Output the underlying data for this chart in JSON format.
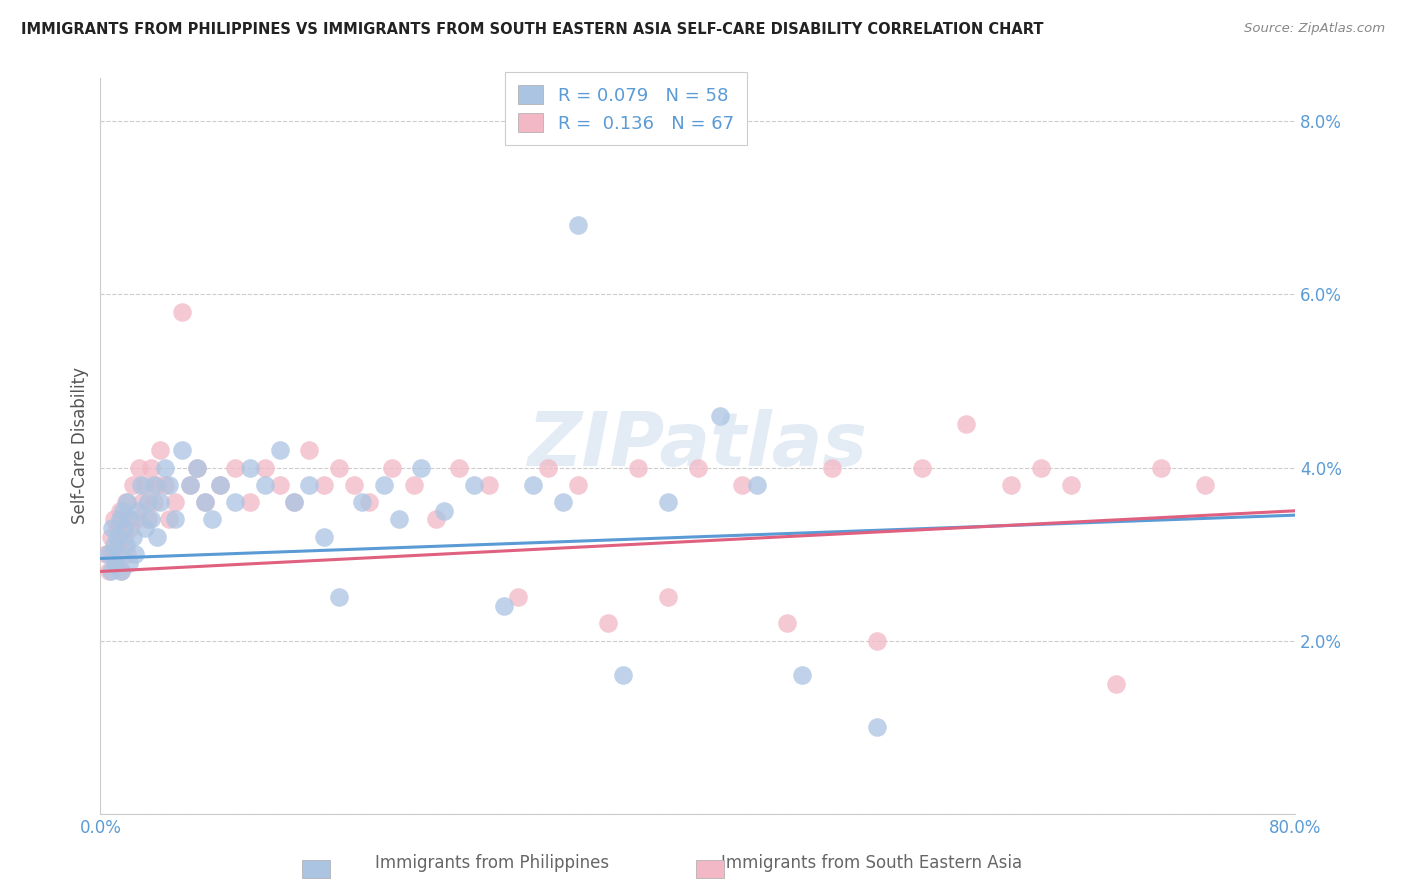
{
  "title": "IMMIGRANTS FROM PHILIPPINES VS IMMIGRANTS FROM SOUTH EASTERN ASIA SELF-CARE DISABILITY CORRELATION CHART",
  "source": "Source: ZipAtlas.com",
  "ylabel": "Self-Care Disability",
  "series1_label": "Immigrants from Philippines",
  "series2_label": "Immigrants from South Eastern Asia",
  "series1_R": 0.079,
  "series1_N": 58,
  "series2_R": 0.136,
  "series2_N": 67,
  "series1_color": "#aac4e2",
  "series2_color": "#f2b8c6",
  "line1_color": "#5b9bd5",
  "line2_color": "#e06080",
  "background_color": "#ffffff",
  "grid_color": "#cccccc",
  "xlim": [
    0.0,
    0.8
  ],
  "ylim": [
    0.0,
    0.085
  ],
  "yticks": [
    0.0,
    0.02,
    0.04,
    0.06,
    0.08
  ],
  "ytick_labels": [
    "",
    "2.0%",
    "4.0%",
    "6.0%",
    "8.0%"
  ],
  "xticks": [
    0.0,
    0.2,
    0.4,
    0.6,
    0.8
  ],
  "xtick_labels": [
    "0.0%",
    "",
    "",
    "",
    "80.0%"
  ],
  "series1_x": [
    0.005,
    0.007,
    0.008,
    0.009,
    0.01,
    0.011,
    0.012,
    0.013,
    0.014,
    0.015,
    0.016,
    0.017,
    0.018,
    0.019,
    0.02,
    0.022,
    0.023,
    0.025,
    0.027,
    0.03,
    0.032,
    0.034,
    0.036,
    0.038,
    0.04,
    0.043,
    0.046,
    0.05,
    0.055,
    0.06,
    0.065,
    0.07,
    0.075,
    0.08,
    0.09,
    0.1,
    0.11,
    0.12,
    0.13,
    0.14,
    0.15,
    0.16,
    0.175,
    0.19,
    0.2,
    0.215,
    0.23,
    0.25,
    0.27,
    0.29,
    0.31,
    0.32,
    0.35,
    0.38,
    0.415,
    0.44,
    0.47,
    0.52
  ],
  "series1_y": [
    0.03,
    0.028,
    0.033,
    0.031,
    0.029,
    0.032,
    0.03,
    0.034,
    0.028,
    0.035,
    0.033,
    0.031,
    0.036,
    0.029,
    0.034,
    0.032,
    0.03,
    0.035,
    0.038,
    0.033,
    0.036,
    0.034,
    0.038,
    0.032,
    0.036,
    0.04,
    0.038,
    0.034,
    0.042,
    0.038,
    0.04,
    0.036,
    0.034,
    0.038,
    0.036,
    0.04,
    0.038,
    0.042,
    0.036,
    0.038,
    0.032,
    0.025,
    0.036,
    0.038,
    0.034,
    0.04,
    0.035,
    0.038,
    0.024,
    0.038,
    0.036,
    0.068,
    0.016,
    0.036,
    0.046,
    0.038,
    0.016,
    0.01
  ],
  "series2_x": [
    0.004,
    0.006,
    0.007,
    0.008,
    0.009,
    0.01,
    0.011,
    0.012,
    0.013,
    0.014,
    0.015,
    0.016,
    0.017,
    0.018,
    0.02,
    0.022,
    0.024,
    0.026,
    0.028,
    0.03,
    0.032,
    0.034,
    0.036,
    0.038,
    0.04,
    0.043,
    0.046,
    0.05,
    0.055,
    0.06,
    0.065,
    0.07,
    0.08,
    0.09,
    0.1,
    0.11,
    0.12,
    0.13,
    0.14,
    0.15,
    0.16,
    0.17,
    0.18,
    0.195,
    0.21,
    0.225,
    0.24,
    0.26,
    0.28,
    0.3,
    0.32,
    0.34,
    0.36,
    0.38,
    0.4,
    0.43,
    0.46,
    0.49,
    0.52,
    0.55,
    0.58,
    0.61,
    0.63,
    0.65,
    0.68,
    0.71,
    0.74
  ],
  "series2_y": [
    0.03,
    0.028,
    0.032,
    0.03,
    0.034,
    0.029,
    0.033,
    0.031,
    0.035,
    0.028,
    0.034,
    0.032,
    0.036,
    0.03,
    0.033,
    0.038,
    0.034,
    0.04,
    0.036,
    0.038,
    0.034,
    0.04,
    0.036,
    0.038,
    0.042,
    0.038,
    0.034,
    0.036,
    0.058,
    0.038,
    0.04,
    0.036,
    0.038,
    0.04,
    0.036,
    0.04,
    0.038,
    0.036,
    0.042,
    0.038,
    0.04,
    0.038,
    0.036,
    0.04,
    0.038,
    0.034,
    0.04,
    0.038,
    0.025,
    0.04,
    0.038,
    0.022,
    0.04,
    0.025,
    0.04,
    0.038,
    0.022,
    0.04,
    0.02,
    0.04,
    0.045,
    0.038,
    0.04,
    0.038,
    0.015,
    0.04,
    0.038
  ],
  "line1_intercept": 0.0295,
  "line1_slope": 0.00625,
  "line2_intercept": 0.028,
  "line2_slope": 0.00875
}
